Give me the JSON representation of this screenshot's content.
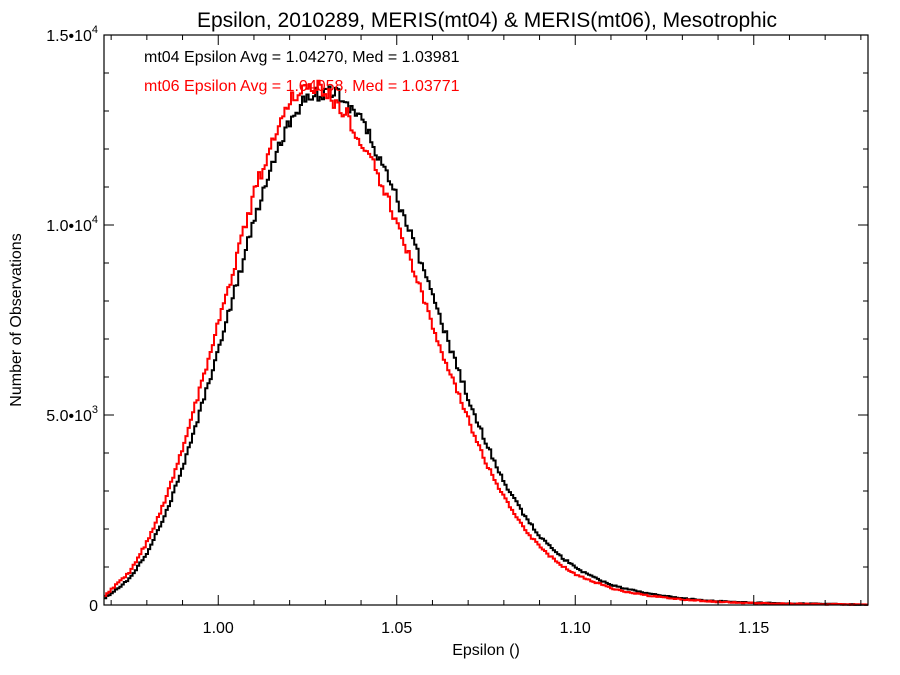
{
  "chart_data": {
    "type": "line",
    "step": true,
    "title": "Epsilon, 2010289, MERIS(mt04) & MERIS(mt06), Mesotrophic",
    "xlabel": "Epsilon ()",
    "ylabel": "Number of Observations",
    "xlim": [
      0.968,
      1.182
    ],
    "ylim": [
      0,
      15000
    ],
    "x_ticks": [
      {
        "value": 1.0,
        "label": "1.00"
      },
      {
        "value": 1.05,
        "label": "1.05"
      },
      {
        "value": 1.1,
        "label": "1.10"
      },
      {
        "value": 1.15,
        "label": "1.15"
      }
    ],
    "y_ticks": [
      {
        "value": 0,
        "mant": "0",
        "exp": ""
      },
      {
        "value": 5000,
        "mant": "5.0•10",
        "exp": "3"
      },
      {
        "value": 10000,
        "mant": "1.0•10",
        "exp": "4"
      },
      {
        "value": 15000,
        "mant": "1.5•10",
        "exp": "4"
      }
    ],
    "grid": false,
    "annotations": [
      {
        "text": "mt04 Epsilon Avg = 1.04270, Med = 1.03981",
        "color": "#000000"
      },
      {
        "text": "mt06 Epsilon Avg = 1.04058, Med = 1.03771",
        "color": "#ff0000"
      }
    ],
    "series": [
      {
        "color": "#000000",
        "x": [
          0.968,
          0.975,
          0.98,
          0.985,
          0.99,
          0.995,
          1.0,
          1.005,
          1.01,
          1.015,
          1.02,
          1.025,
          1.03,
          1.035,
          1.04,
          1.045,
          1.05,
          1.055,
          1.06,
          1.065,
          1.07,
          1.075,
          1.08,
          1.085,
          1.09,
          1.095,
          1.1,
          1.105,
          1.11,
          1.115,
          1.12,
          1.13,
          1.14,
          1.15,
          1.16,
          1.17,
          1.182
        ],
        "values": [
          180,
          700,
          1400,
          2400,
          3700,
          5200,
          6800,
          8500,
          10200,
          11600,
          12800,
          13400,
          13550,
          13300,
          12700,
          11800,
          10600,
          9400,
          8000,
          6700,
          5400,
          4200,
          3200,
          2400,
          1800,
          1320,
          960,
          720,
          530,
          400,
          300,
          170,
          100,
          60,
          40,
          25,
          10
        ]
      },
      {
        "color": "#ff0000",
        "x": [
          0.968,
          0.975,
          0.98,
          0.985,
          0.99,
          0.995,
          1.0,
          1.005,
          1.01,
          1.015,
          1.02,
          1.025,
          1.03,
          1.035,
          1.04,
          1.045,
          1.05,
          1.055,
          1.06,
          1.065,
          1.07,
          1.075,
          1.08,
          1.085,
          1.09,
          1.095,
          1.1,
          1.105,
          1.11,
          1.115,
          1.12,
          1.13,
          1.14,
          1.15,
          1.16,
          1.17,
          1.182
        ],
        "values": [
          250,
          880,
          1700,
          2800,
          4200,
          5800,
          7500,
          9200,
          10900,
          12300,
          13300,
          13700,
          13500,
          13000,
          12200,
          11200,
          10000,
          8700,
          7300,
          6000,
          4800,
          3700,
          2800,
          2050,
          1500,
          1100,
          800,
          600,
          440,
          330,
          250,
          140,
          80,
          50,
          32,
          20,
          8
        ]
      }
    ]
  }
}
